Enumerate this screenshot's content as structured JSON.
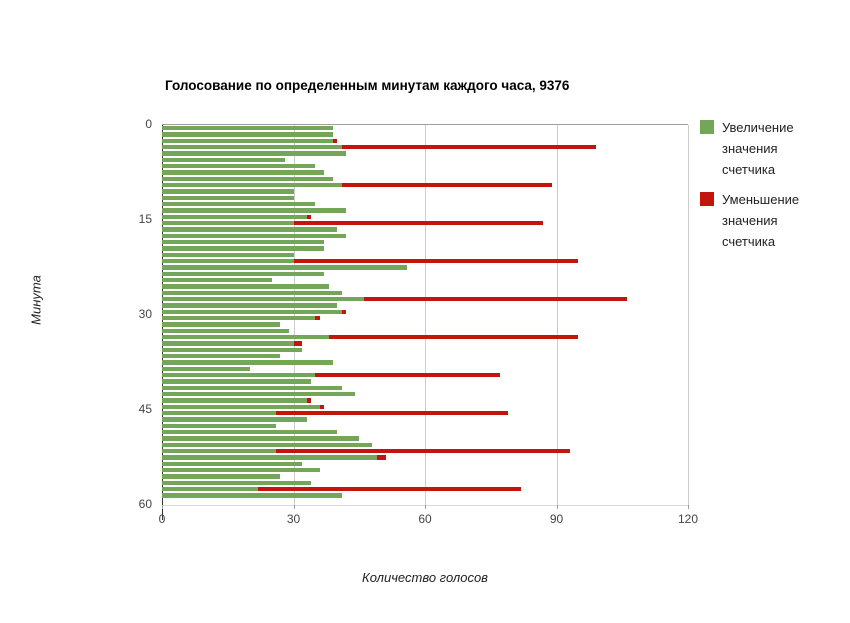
{
  "chart": {
    "title": "Голосование по определенным минутам каждого часа, 9376"
  },
  "chart_data": {
    "type": "bar",
    "orientation": "horizontal",
    "stacked": true,
    "title": "Голосование по определенным минутам каждого часа, 9376",
    "xlabel": "Количество голосов",
    "ylabel": "Минута",
    "xlim": [
      0,
      120
    ],
    "xticks": [
      0,
      30,
      60,
      90,
      120
    ],
    "yticks": [
      0,
      15,
      30,
      45,
      60
    ],
    "grid": true,
    "legend_position": "right",
    "categories": [
      0,
      1,
      2,
      3,
      4,
      5,
      6,
      7,
      8,
      9,
      10,
      11,
      12,
      13,
      14,
      15,
      16,
      17,
      18,
      19,
      20,
      21,
      22,
      23,
      24,
      25,
      26,
      27,
      28,
      29,
      30,
      31,
      32,
      33,
      34,
      35,
      36,
      37,
      38,
      39,
      40,
      41,
      42,
      43,
      44,
      45,
      46,
      47,
      48,
      49,
      50,
      51,
      52,
      53,
      54,
      55,
      56,
      57,
      58,
      59
    ],
    "series": [
      {
        "name": "Увеличение значения счетчика",
        "color": "#74a65a",
        "values": [
          39,
          39,
          39,
          41,
          42,
          28,
          35,
          37,
          39,
          41,
          30,
          30,
          35,
          42,
          33,
          30,
          40,
          42,
          37,
          37,
          30,
          30,
          56,
          37,
          25,
          38,
          41,
          46,
          40,
          41,
          35,
          27,
          29,
          38,
          30,
          32,
          27,
          39,
          20,
          35,
          34,
          41,
          44,
          33,
          36,
          26,
          33,
          26,
          40,
          45,
          48,
          26,
          49,
          32,
          36,
          27,
          34,
          22,
          41,
          0
        ]
      },
      {
        "name": "Уменьшение значения счетчика",
        "color": "#c4150c",
        "values": [
          0,
          0,
          1,
          58,
          0,
          0,
          0,
          0,
          0,
          48,
          0,
          0,
          0,
          0,
          1,
          57,
          0,
          0,
          0,
          0,
          0,
          65,
          0,
          0,
          0,
          0,
          0,
          60,
          0,
          1,
          1,
          0,
          0,
          57,
          2,
          0,
          0,
          0,
          0,
          42,
          0,
          0,
          0,
          1,
          1,
          53,
          0,
          0,
          0,
          0,
          0,
          67,
          2,
          0,
          0,
          0,
          0,
          60,
          0,
          0
        ]
      }
    ]
  },
  "legend": {
    "increase_label": "Увеличение значения счетчика",
    "decrease_label": "Уменьшение значения счетчика"
  },
  "axes": {
    "x_title": "Количество голосов",
    "y_title": "Минута"
  }
}
